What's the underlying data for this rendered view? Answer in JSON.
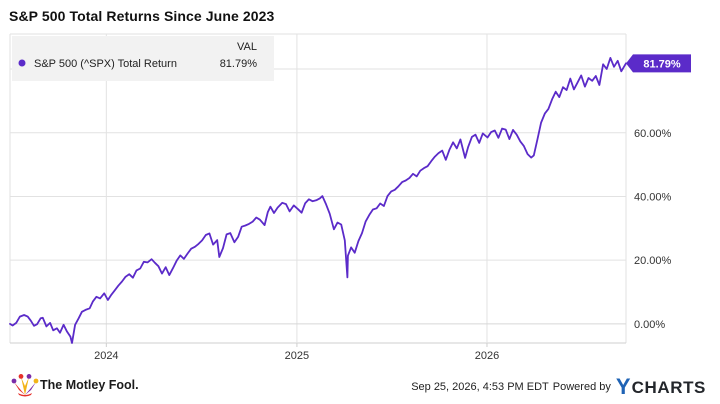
{
  "chart_data": {
    "type": "line",
    "title": "S&P 500 Total Returns Since June 2023",
    "xlabel": "",
    "ylabel": "",
    "legend": {
      "header": "VAL",
      "placement": "top-left",
      "entries": [
        {
          "name": "S&P 500 (^SPX) Total Return",
          "value": "81.79%"
        }
      ]
    },
    "last_value_label": "81.79%",
    "x_ticks": [
      "2024",
      "2025",
      "2026"
    ],
    "y_ticks": [
      "0.00%",
      "20.00%",
      "40.00%",
      "60.00%"
    ],
    "y_tick_values": [
      0,
      20,
      40,
      60
    ],
    "ylim": [
      -6,
      91
    ],
    "xlim": [
      "2023-06-30",
      "2026-09-25"
    ],
    "grid": true,
    "series": [
      {
        "name": "S&P 500 (^SPX) Total Return",
        "color": "#5b2bc9",
        "points": [
          [
            "2023-06-30",
            0.0
          ],
          [
            "2023-07-05",
            -0.5
          ],
          [
            "2023-07-12",
            0.3
          ],
          [
            "2023-07-19",
            2.3
          ],
          [
            "2023-07-27",
            2.8
          ],
          [
            "2023-08-03",
            2.3
          ],
          [
            "2023-08-09",
            1.0
          ],
          [
            "2023-08-15",
            -0.6
          ],
          [
            "2023-08-21",
            -0.1
          ],
          [
            "2023-08-28",
            1.8
          ],
          [
            "2023-09-01",
            1.9
          ],
          [
            "2023-09-08",
            -0.8
          ],
          [
            "2023-09-15",
            0.3
          ],
          [
            "2023-09-21",
            -2.0
          ],
          [
            "2023-09-28",
            -1.4
          ],
          [
            "2023-10-04",
            -2.8
          ],
          [
            "2023-10-11",
            -0.3
          ],
          [
            "2023-10-17",
            -2.3
          ],
          [
            "2023-10-24",
            -4.0
          ],
          [
            "2023-10-27",
            -6.0
          ],
          [
            "2023-11-02",
            -0.3
          ],
          [
            "2023-11-09",
            1.8
          ],
          [
            "2023-11-15",
            3.8
          ],
          [
            "2023-11-22",
            4.4
          ],
          [
            "2023-11-30",
            4.9
          ],
          [
            "2023-12-06",
            7.0
          ],
          [
            "2023-12-13",
            8.5
          ],
          [
            "2023-12-20",
            8.0
          ],
          [
            "2023-12-28",
            9.6
          ],
          [
            "2024-01-04",
            7.5
          ],
          [
            "2024-01-10",
            9.0
          ],
          [
            "2024-01-17",
            10.5
          ],
          [
            "2024-01-24",
            12.0
          ],
          [
            "2024-01-31",
            13.3
          ],
          [
            "2024-02-07",
            14.8
          ],
          [
            "2024-02-14",
            15.6
          ],
          [
            "2024-02-21",
            14.5
          ],
          [
            "2024-02-28",
            16.8
          ],
          [
            "2024-03-06",
            17.4
          ],
          [
            "2024-03-13",
            19.5
          ],
          [
            "2024-03-20",
            19.3
          ],
          [
            "2024-03-28",
            20.3
          ],
          [
            "2024-04-03",
            19.2
          ],
          [
            "2024-04-10",
            18.1
          ],
          [
            "2024-04-17",
            15.8
          ],
          [
            "2024-04-24",
            17.8
          ],
          [
            "2024-05-01",
            15.3
          ],
          [
            "2024-05-08",
            17.5
          ],
          [
            "2024-05-15",
            19.8
          ],
          [
            "2024-05-22",
            21.5
          ],
          [
            "2024-05-29",
            20.4
          ],
          [
            "2024-06-05",
            22.1
          ],
          [
            "2024-06-12",
            23.6
          ],
          [
            "2024-06-19",
            24.2
          ],
          [
            "2024-06-26",
            25.1
          ],
          [
            "2024-07-03",
            26.2
          ],
          [
            "2024-07-10",
            27.9
          ],
          [
            "2024-07-17",
            28.4
          ],
          [
            "2024-07-24",
            24.9
          ],
          [
            "2024-08-01",
            26.3
          ],
          [
            "2024-08-05",
            21.0
          ],
          [
            "2024-08-12",
            23.8
          ],
          [
            "2024-08-19",
            28.1
          ],
          [
            "2024-08-26",
            28.5
          ],
          [
            "2024-09-03",
            25.6
          ],
          [
            "2024-09-10",
            27.3
          ],
          [
            "2024-09-17",
            30.5
          ],
          [
            "2024-09-24",
            30.9
          ],
          [
            "2024-10-01",
            31.4
          ],
          [
            "2024-10-08",
            32.1
          ],
          [
            "2024-10-15",
            33.4
          ],
          [
            "2024-10-22",
            32.7
          ],
          [
            "2024-10-31",
            31.0
          ],
          [
            "2024-11-06",
            35.1
          ],
          [
            "2024-11-11",
            36.8
          ],
          [
            "2024-11-18",
            34.8
          ],
          [
            "2024-11-25",
            36.5
          ],
          [
            "2024-12-04",
            38.0
          ],
          [
            "2024-12-11",
            37.6
          ],
          [
            "2024-12-18",
            35.3
          ],
          [
            "2024-12-26",
            37.2
          ],
          [
            "2025-01-03",
            36.0
          ],
          [
            "2025-01-10",
            34.9
          ],
          [
            "2025-01-17",
            37.9
          ],
          [
            "2025-01-24",
            39.1
          ],
          [
            "2025-01-31",
            38.5
          ],
          [
            "2025-02-07",
            38.8
          ],
          [
            "2025-02-14",
            39.4
          ],
          [
            "2025-02-19",
            40.1
          ],
          [
            "2025-02-26",
            37.5
          ],
          [
            "2025-03-05",
            34.6
          ],
          [
            "2025-03-13",
            29.7
          ],
          [
            "2025-03-20",
            31.8
          ],
          [
            "2025-03-27",
            31.2
          ],
          [
            "2025-04-03",
            26.2
          ],
          [
            "2025-04-08",
            14.6
          ],
          [
            "2025-04-09",
            21.4
          ],
          [
            "2025-04-15",
            24.0
          ],
          [
            "2025-04-22",
            22.3
          ],
          [
            "2025-04-29",
            26.0
          ],
          [
            "2025-05-06",
            28.5
          ],
          [
            "2025-05-13",
            32.1
          ],
          [
            "2025-05-20",
            34.2
          ],
          [
            "2025-05-27",
            35.9
          ],
          [
            "2025-06-03",
            36.3
          ],
          [
            "2025-06-10",
            37.8
          ],
          [
            "2025-06-17",
            37.0
          ],
          [
            "2025-06-24",
            40.1
          ],
          [
            "2025-07-01",
            41.6
          ],
          [
            "2025-07-08",
            42.1
          ],
          [
            "2025-07-15",
            43.2
          ],
          [
            "2025-07-22",
            44.5
          ],
          [
            "2025-07-29",
            45.0
          ],
          [
            "2025-08-05",
            45.8
          ],
          [
            "2025-08-12",
            47.1
          ],
          [
            "2025-08-19",
            46.3
          ],
          [
            "2025-08-26",
            48.1
          ],
          [
            "2025-09-02",
            48.9
          ],
          [
            "2025-09-09",
            49.5
          ],
          [
            "2025-09-16",
            51.1
          ],
          [
            "2025-09-23",
            52.5
          ],
          [
            "2025-09-30",
            53.6
          ],
          [
            "2025-10-07",
            54.4
          ],
          [
            "2025-10-14",
            51.5
          ],
          [
            "2025-10-21",
            54.7
          ],
          [
            "2025-10-28",
            57.0
          ],
          [
            "2025-11-04",
            55.1
          ],
          [
            "2025-11-11",
            57.9
          ],
          [
            "2025-11-20",
            52.1
          ],
          [
            "2025-11-26",
            55.6
          ],
          [
            "2025-12-03",
            58.7
          ],
          [
            "2025-12-10",
            59.4
          ],
          [
            "2025-12-17",
            56.8
          ],
          [
            "2025-12-24",
            59.8
          ],
          [
            "2026-01-02",
            58.5
          ],
          [
            "2026-01-09",
            60.2
          ],
          [
            "2026-01-16",
            60.7
          ],
          [
            "2026-01-23",
            58.4
          ],
          [
            "2026-01-30",
            61.3
          ],
          [
            "2026-02-06",
            61.0
          ],
          [
            "2026-02-13",
            58.0
          ],
          [
            "2026-02-20",
            60.9
          ],
          [
            "2026-02-27",
            59.4
          ],
          [
            "2026-03-06",
            57.3
          ],
          [
            "2026-03-13",
            55.8
          ],
          [
            "2026-03-20",
            53.3
          ],
          [
            "2026-03-27",
            52.2
          ],
          [
            "2026-04-01",
            52.9
          ],
          [
            "2026-04-08",
            58.0
          ],
          [
            "2026-04-15",
            63.2
          ],
          [
            "2026-04-22",
            66.0
          ],
          [
            "2026-04-29",
            67.5
          ],
          [
            "2026-05-06",
            70.5
          ],
          [
            "2026-05-13",
            72.9
          ],
          [
            "2026-05-20",
            71.2
          ],
          [
            "2026-05-27",
            74.3
          ],
          [
            "2026-06-03",
            73.4
          ],
          [
            "2026-06-10",
            77.0
          ],
          [
            "2026-06-17",
            73.6
          ],
          [
            "2026-06-24",
            75.8
          ],
          [
            "2026-07-01",
            78.0
          ],
          [
            "2026-07-08",
            74.5
          ],
          [
            "2026-07-15",
            77.2
          ],
          [
            "2026-07-22",
            76.3
          ],
          [
            "2026-07-29",
            77.8
          ],
          [
            "2026-08-05",
            75.0
          ],
          [
            "2026-08-12",
            81.5
          ],
          [
            "2026-08-19",
            80.0
          ],
          [
            "2026-08-26",
            83.5
          ],
          [
            "2026-09-02",
            80.7
          ],
          [
            "2026-09-09",
            82.6
          ],
          [
            "2026-09-16",
            79.3
          ],
          [
            "2026-09-25",
            81.79
          ]
        ]
      }
    ]
  },
  "footer": {
    "brand": "The Motley Fool.",
    "timestamp": "Sep 25, 2026, 4:53 PM EDT",
    "powered_by": "Powered by",
    "ycharts_y": "Y",
    "ycharts_word": "CHARTS"
  },
  "colors": {
    "line": "#5b2bc9",
    "grid": "#e2e2e2",
    "legend_bg": "#f2f2f2",
    "ycharts_blue": "#1f63b5"
  }
}
